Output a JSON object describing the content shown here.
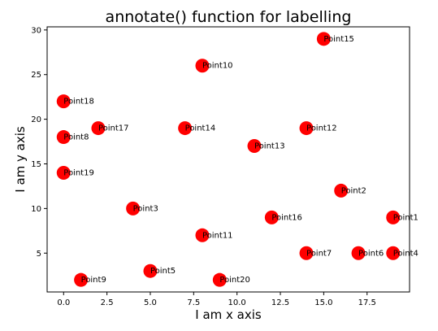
{
  "chart_data": {
    "type": "scatter",
    "title": "annotate() function for labelling",
    "xlabel": "I am x axis",
    "ylabel": "I am y axis",
    "xlim": [
      -0.95,
      19.95
    ],
    "ylim": [
      0.65,
      30.35
    ],
    "x_ticks": [
      "0.0",
      "2.5",
      "5.0",
      "7.5",
      "10.0",
      "12.5",
      "15.0",
      "17.5"
    ],
    "x_tick_values": [
      0,
      2.5,
      5,
      7.5,
      10,
      12.5,
      15,
      17.5
    ],
    "y_ticks": [
      "5",
      "10",
      "15",
      "20",
      "25",
      "30"
    ],
    "y_tick_values": [
      5,
      10,
      15,
      20,
      25,
      30
    ],
    "grid": false,
    "marker_color": "#ff0000",
    "points": [
      {
        "label": "Point1",
        "x": 19,
        "y": 9
      },
      {
        "label": "Point2",
        "x": 16,
        "y": 12
      },
      {
        "label": "Point3",
        "x": 4,
        "y": 10
      },
      {
        "label": "Point4",
        "x": 19,
        "y": 5
      },
      {
        "label": "Point5",
        "x": 5,
        "y": 3
      },
      {
        "label": "Point6",
        "x": 17,
        "y": 5
      },
      {
        "label": "Point7",
        "x": 14,
        "y": 5
      },
      {
        "label": "Point8",
        "x": 0,
        "y": 18
      },
      {
        "label": "Point9",
        "x": 1,
        "y": 2
      },
      {
        "label": "Point10",
        "x": 8,
        "y": 26
      },
      {
        "label": "Point11",
        "x": 8,
        "y": 7
      },
      {
        "label": "Point12",
        "x": 14,
        "y": 19
      },
      {
        "label": "Point13",
        "x": 11,
        "y": 17
      },
      {
        "label": "Point14",
        "x": 7,
        "y": 19
      },
      {
        "label": "Point15",
        "x": 15,
        "y": 29
      },
      {
        "label": "Point16",
        "x": 12,
        "y": 9
      },
      {
        "label": "Point17",
        "x": 2,
        "y": 19
      },
      {
        "label": "Point18",
        "x": 0,
        "y": 22
      },
      {
        "label": "Point19",
        "x": 0,
        "y": 14
      },
      {
        "label": "Point20",
        "x": 9,
        "y": 2
      }
    ]
  }
}
